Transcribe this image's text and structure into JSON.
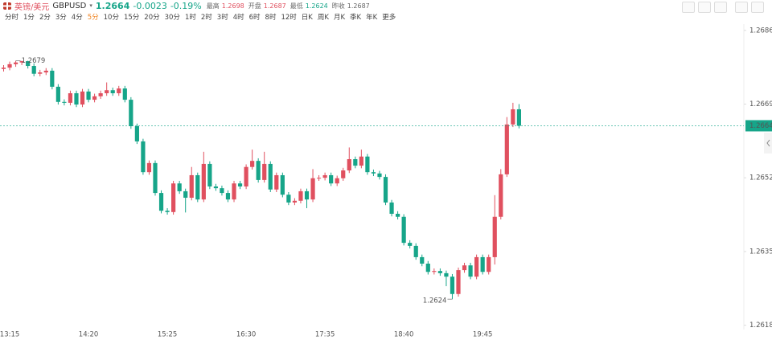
{
  "header": {
    "symbol_name": "英镑/美元",
    "code": "GBPUSD",
    "price": "1.2664",
    "change": "-0.0023",
    "change_pct": "-0.19%",
    "stats": [
      {
        "label": "最高",
        "value": "1.2698"
      },
      {
        "label": "开盘",
        "value": "1.2687"
      },
      {
        "label": "最低",
        "value": "1.2624"
      },
      {
        "label": "昨收",
        "value": "1.2687"
      }
    ],
    "timeframes": [
      "分时",
      "1分",
      "2分",
      "3分",
      "4分",
      "5分",
      "10分",
      "15分",
      "20分",
      "30分",
      "1时",
      "2时",
      "3时",
      "4时",
      "6时",
      "8时",
      "12时",
      "日K",
      "周K",
      "月K",
      "季K",
      "年K",
      "更多"
    ],
    "active_timeframe": 5
  },
  "chart_data": {
    "type": "candlestick",
    "up_color": "#e0505f",
    "down_color": "#16a589",
    "categories": [
      null,
      "13:15",
      null,
      null,
      null,
      null,
      null,
      null,
      null,
      null,
      null,
      null,
      null,
      null,
      "14:20",
      null,
      null,
      null,
      null,
      null,
      null,
      null,
      null,
      null,
      null,
      null,
      null,
      "15:25",
      null,
      null,
      null,
      null,
      null,
      null,
      null,
      null,
      null,
      null,
      null,
      null,
      "16:30",
      null,
      null,
      null,
      null,
      null,
      null,
      null,
      null,
      null,
      null,
      null,
      null,
      "17:35",
      null,
      null,
      null,
      null,
      null,
      null,
      null,
      null,
      null,
      null,
      null,
      null,
      "18:40",
      null,
      null,
      null,
      null,
      null,
      null,
      null,
      null,
      null,
      null,
      null,
      null,
      "19:45",
      null,
      null,
      null,
      null,
      null,
      null
    ],
    "open": [
      1.26771,
      1.26774,
      1.26782,
      1.26786,
      1.26789,
      1.26778,
      1.2676,
      1.26763,
      1.26767,
      1.2673,
      1.26695,
      1.26693,
      1.26715,
      1.26689,
      1.26719,
      1.267,
      1.26708,
      1.26715,
      1.26722,
      1.26715,
      1.26726,
      1.267,
      1.26639,
      1.26604,
      1.26533,
      1.26554,
      1.26485,
      1.26444,
      1.26441,
      1.26507,
      1.26489,
      1.26474,
      1.26526,
      1.2647,
      1.26552,
      1.265,
      1.26496,
      1.26485,
      1.2647,
      1.26507,
      1.265,
      1.26545,
      1.26559,
      1.26515,
      1.26552,
      1.26493,
      1.26526,
      1.26481,
      1.26463,
      1.26467,
      1.26489,
      1.2647,
      1.26519,
      1.2652,
      1.26526,
      1.26507,
      1.26519,
      1.26537,
      1.26563,
      1.26548,
      1.26569,
      1.26533,
      1.2653,
      1.26522,
      1.26463,
      1.26437,
      1.2643,
      1.2637,
      1.26363,
      1.26337,
      1.26322,
      1.26303,
      1.26305,
      1.263,
      1.26292,
      1.26252,
      1.26307,
      1.26318,
      1.26292,
      1.26337,
      1.26303,
      1.26337,
      1.2643,
      1.26528,
      1.26643,
      1.26678
    ],
    "high": [
      1.2678,
      1.26788,
      1.2679,
      1.2679,
      1.2679,
      1.26784,
      1.26769,
      1.26773,
      1.26773,
      1.26736,
      1.26701,
      1.26721,
      1.26721,
      1.26725,
      1.26725,
      1.26714,
      1.26721,
      1.2674,
      1.26728,
      1.26732,
      1.26732,
      1.26706,
      1.26645,
      1.2661,
      1.2656,
      1.2656,
      1.26491,
      1.2645,
      1.26513,
      1.26513,
      1.26495,
      1.26545,
      1.26532,
      1.2658,
      1.26558,
      1.26506,
      1.26502,
      1.26491,
      1.26513,
      1.26513,
      1.26551,
      1.26585,
      1.26565,
      1.2658,
      1.26558,
      1.26532,
      1.26532,
      1.26487,
      1.26473,
      1.26495,
      1.26495,
      1.2654,
      1.26526,
      1.26532,
      1.26532,
      1.26525,
      1.26543,
      1.2659,
      1.26569,
      1.26585,
      1.26575,
      1.26539,
      1.26536,
      1.26528,
      1.26469,
      1.26443,
      1.26436,
      1.26376,
      1.26369,
      1.26343,
      1.26328,
      1.26311,
      1.26311,
      1.26306,
      1.26298,
      1.26313,
      1.26324,
      1.26324,
      1.26343,
      1.26343,
      1.26343,
      1.2648,
      1.2654,
      1.2666,
      1.26693,
      1.2669
    ],
    "low": [
      1.26765,
      1.26768,
      1.26776,
      1.2678,
      1.26772,
      1.26754,
      1.26754,
      1.26757,
      1.26724,
      1.26689,
      1.26687,
      1.26687,
      1.26683,
      1.26683,
      1.26694,
      1.26694,
      1.26702,
      1.26709,
      1.26709,
      1.26709,
      1.26694,
      1.26633,
      1.26598,
      1.26527,
      1.26527,
      1.26479,
      1.26438,
      1.26435,
      1.26435,
      1.26483,
      1.2644,
      1.26468,
      1.26464,
      1.26464,
      1.26494,
      1.2649,
      1.26479,
      1.26464,
      1.26464,
      1.26494,
      1.26494,
      1.26539,
      1.26509,
      1.26509,
      1.26487,
      1.26487,
      1.26475,
      1.26457,
      1.26457,
      1.26461,
      1.2645,
      1.26464,
      1.26513,
      1.26514,
      1.26501,
      1.26501,
      1.26513,
      1.26531,
      1.26542,
      1.26542,
      1.26527,
      1.26524,
      1.26516,
      1.26457,
      1.26431,
      1.26424,
      1.26364,
      1.26357,
      1.26331,
      1.26316,
      1.26297,
      1.26297,
      1.26294,
      1.2627,
      1.2624,
      1.26246,
      1.26301,
      1.26286,
      1.26286,
      1.26297,
      1.26297,
      1.2632,
      1.26424,
      1.26522,
      1.26637,
      1.26634
    ],
    "close": [
      1.26774,
      1.26782,
      1.26786,
      1.26789,
      1.26778,
      1.2676,
      1.26763,
      1.26767,
      1.2673,
      1.26695,
      1.26693,
      1.26715,
      1.26689,
      1.26719,
      1.267,
      1.26708,
      1.26715,
      1.26722,
      1.26715,
      1.26726,
      1.267,
      1.26639,
      1.26604,
      1.26533,
      1.26554,
      1.26485,
      1.26444,
      1.26441,
      1.26507,
      1.26489,
      1.26474,
      1.26526,
      1.2647,
      1.26552,
      1.265,
      1.26496,
      1.26485,
      1.2647,
      1.26507,
      1.265,
      1.26545,
      1.26559,
      1.26515,
      1.26552,
      1.26493,
      1.26526,
      1.26481,
      1.26463,
      1.26467,
      1.26489,
      1.2647,
      1.26519,
      1.2652,
      1.26526,
      1.26507,
      1.26519,
      1.26537,
      1.26563,
      1.26548,
      1.26569,
      1.26533,
      1.2653,
      1.26522,
      1.26463,
      1.26437,
      1.2643,
      1.2637,
      1.26363,
      1.26337,
      1.26322,
      1.26303,
      1.26305,
      1.263,
      1.26292,
      1.26252,
      1.26307,
      1.26318,
      1.26292,
      1.26337,
      1.26303,
      1.26337,
      1.2643,
      1.26528,
      1.26643,
      1.26678,
      1.2664
    ],
    "ylim": [
      1.2617,
      1.2688
    ],
    "yticks": [
      1.2686,
      1.2669,
      1.2652,
      1.2635,
      1.2618
    ],
    "last_price": 1.2664,
    "high_label": 1.2679,
    "low_label": 1.2624
  }
}
